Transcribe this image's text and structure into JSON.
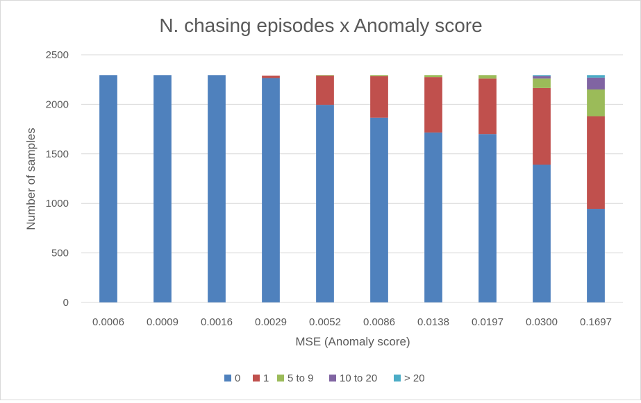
{
  "chart_data": {
    "type": "bar",
    "stacked": true,
    "title": "N. chasing episodes x Anomaly score",
    "xlabel": "MSE (Anomaly score)",
    "ylabel": "Number of samples",
    "ylim": [
      0,
      2500
    ],
    "yticks": [
      0,
      500,
      1000,
      1500,
      2000,
      2500
    ],
    "grid": true,
    "legend_position": "bottom",
    "categories": [
      "0.0006",
      "0.0009",
      "0.0016",
      "0.0029",
      "0.0052",
      "0.0086",
      "0.0138",
      "0.0197",
      "0.0300",
      "0.1697"
    ],
    "series": [
      {
        "name": "0",
        "color": "#4f81bd",
        "values": [
          2295,
          2295,
          2295,
          2265,
          1995,
          1865,
          1715,
          1700,
          1390,
          945
        ]
      },
      {
        "name": "1",
        "color": "#c0504d",
        "values": [
          0,
          0,
          0,
          25,
          295,
          420,
          560,
          560,
          775,
          935
        ]
      },
      {
        "name": "5 to 9",
        "color": "#9bbb59",
        "values": [
          0,
          0,
          0,
          0,
          5,
          10,
          20,
          35,
          95,
          270
        ]
      },
      {
        "name": "10 to 20",
        "color": "#8064a2",
        "values": [
          0,
          0,
          0,
          0,
          0,
          0,
          0,
          0,
          25,
          120
        ]
      },
      {
        "name": "> 20",
        "color": "#4bacc6",
        "values": [
          0,
          0,
          0,
          0,
          0,
          0,
          0,
          0,
          10,
          25
        ]
      }
    ]
  }
}
